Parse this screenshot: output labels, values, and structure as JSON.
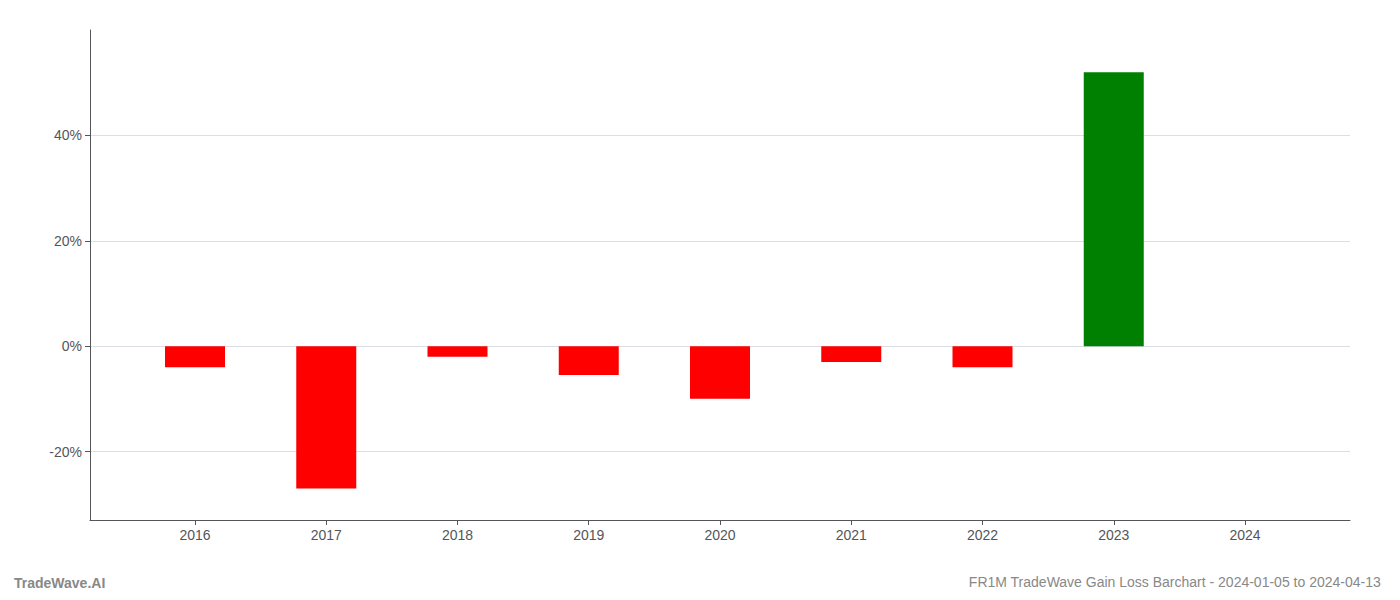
{
  "chart_data": {
    "type": "bar",
    "title": "FR1M TradeWave Gain Loss Barchart - 2024-01-05 to 2024-04-13",
    "annotations": [
      "TradeWave.AI"
    ],
    "x": [
      2016,
      2017,
      2018,
      2019,
      2020,
      2021,
      2022,
      2023
    ],
    "values": [
      -0.04,
      -0.27,
      -0.02,
      -0.055,
      -0.1,
      -0.03,
      -0.04,
      0.52
    ],
    "colors": [
      "#ff0000",
      "#ff0000",
      "#ff0000",
      "#ff0000",
      "#ff0000",
      "#ff0000",
      "#ff0000",
      "#008000"
    ],
    "xlim": [
      2015.2,
      2024.8
    ],
    "xticks": [
      2016,
      2017,
      2018,
      2019,
      2020,
      2021,
      2022,
      2023,
      2024
    ],
    "ylim": [
      -0.33,
      0.6
    ],
    "yticks": [
      {
        "value": -0.2,
        "label": "-20%"
      },
      {
        "value": 0.0,
        "label": "0%"
      },
      {
        "value": 0.2,
        "label": "20%"
      },
      {
        "value": 0.4,
        "label": "40%"
      }
    ],
    "grid": true
  }
}
